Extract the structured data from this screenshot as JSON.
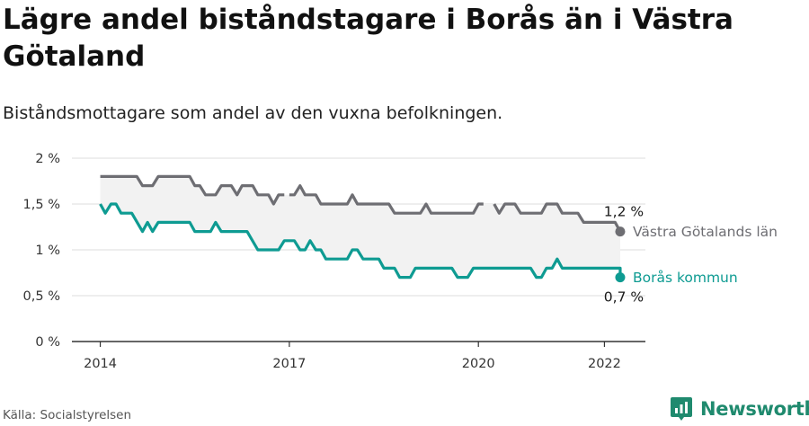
{
  "title": "Lägre andel biståndstagare i Borås än i Västra Götaland",
  "subtitle": "Biståndsmottagare som andel av den vuxna befolkningen.",
  "source": "Källa: Socialstyrelsen",
  "brand": {
    "name": "Newsworthy",
    "icon": "bar-chart-logo-icon",
    "color": "#1f8a6e"
  },
  "chart_data": {
    "type": "line",
    "x_axis": {
      "ticks": [
        "2014",
        "2017",
        "2020",
        "2022"
      ],
      "tick_values": [
        2014.0,
        2017.0,
        2020.0,
        2022.0
      ],
      "range": [
        2013.55,
        2022.65
      ]
    },
    "y_axis": {
      "ticks": [
        "0 %",
        "0,5 %",
        "1 %",
        "1,5 %",
        "2 %"
      ],
      "tick_values": [
        0,
        0.5,
        1.0,
        1.5,
        2.0
      ],
      "range": [
        0,
        2
      ],
      "grid": true
    },
    "shaded_band_between_series": true,
    "series": [
      {
        "name": "Västra Götalands län",
        "color": "#6e6e73",
        "end_label": "1,2 %",
        "points": [
          [
            2014.0,
            1.8
          ],
          [
            2014.58,
            1.8
          ],
          [
            2014.67,
            1.7
          ],
          [
            2014.83,
            1.7
          ],
          [
            2014.92,
            1.8
          ],
          [
            2015.42,
            1.8
          ],
          [
            2015.5,
            1.7
          ],
          [
            2015.58,
            1.7
          ],
          [
            2015.67,
            1.6
          ],
          [
            2015.83,
            1.6
          ],
          [
            2015.92,
            1.7
          ],
          [
            2016.08,
            1.7
          ],
          [
            2016.17,
            1.6
          ],
          [
            2016.25,
            1.7
          ],
          [
            2016.42,
            1.7
          ],
          [
            2016.5,
            1.6
          ],
          [
            2016.67,
            1.6
          ],
          [
            2016.75,
            1.5
          ],
          [
            2016.83,
            1.6
          ],
          [
            2016.92,
            1.6
          ],
          null,
          [
            2017.0,
            1.6
          ],
          [
            2017.08,
            1.6
          ],
          [
            2017.17,
            1.7
          ],
          [
            2017.25,
            1.6
          ],
          [
            2017.33,
            1.6
          ],
          [
            2017.42,
            1.6
          ],
          [
            2017.5,
            1.5
          ],
          [
            2017.92,
            1.5
          ],
          [
            2018.0,
            1.6
          ],
          [
            2018.08,
            1.5
          ],
          [
            2018.58,
            1.5
          ],
          [
            2018.67,
            1.4
          ],
          [
            2019.08,
            1.4
          ],
          [
            2019.17,
            1.5
          ],
          [
            2019.25,
            1.4
          ],
          [
            2019.92,
            1.4
          ],
          [
            2020.0,
            1.5
          ],
          [
            2020.08,
            1.5
          ],
          null,
          [
            2020.25,
            1.5
          ],
          [
            2020.33,
            1.4
          ],
          [
            2020.42,
            1.5
          ],
          [
            2020.58,
            1.5
          ],
          [
            2020.67,
            1.4
          ],
          [
            2021.0,
            1.4
          ],
          [
            2021.08,
            1.5
          ],
          [
            2021.25,
            1.5
          ],
          [
            2021.33,
            1.4
          ],
          [
            2021.58,
            1.4
          ],
          [
            2021.67,
            1.3
          ],
          [
            2022.17,
            1.3
          ],
          [
            2022.25,
            1.2
          ]
        ]
      },
      {
        "name": "Borås kommun",
        "color": "#0e9b92",
        "end_label": "0,7 %",
        "points": [
          [
            2014.0,
            1.5
          ],
          [
            2014.08,
            1.4
          ],
          [
            2014.17,
            1.5
          ],
          [
            2014.25,
            1.5
          ],
          [
            2014.33,
            1.4
          ],
          [
            2014.5,
            1.4
          ],
          [
            2014.67,
            1.2
          ],
          [
            2014.75,
            1.3
          ],
          [
            2014.83,
            1.2
          ],
          [
            2014.92,
            1.3
          ],
          [
            2015.42,
            1.3
          ],
          [
            2015.5,
            1.2
          ],
          [
            2015.75,
            1.2
          ],
          [
            2015.83,
            1.3
          ],
          [
            2015.92,
            1.2
          ],
          [
            2016.33,
            1.2
          ],
          [
            2016.5,
            1.0
          ],
          [
            2016.83,
            1.0
          ],
          [
            2016.92,
            1.1
          ],
          [
            2017.08,
            1.1
          ],
          [
            2017.17,
            1.0
          ],
          [
            2017.25,
            1.0
          ],
          [
            2017.33,
            1.1
          ],
          [
            2017.42,
            1.0
          ],
          [
            2017.5,
            1.0
          ],
          [
            2017.58,
            0.9
          ],
          [
            2017.92,
            0.9
          ],
          [
            2018.0,
            1.0
          ],
          [
            2018.08,
            1.0
          ],
          [
            2018.17,
            0.9
          ],
          [
            2018.42,
            0.9
          ],
          [
            2018.5,
            0.8
          ],
          [
            2018.67,
            0.8
          ],
          [
            2018.75,
            0.7
          ],
          [
            2018.92,
            0.7
          ],
          [
            2019.0,
            0.8
          ],
          [
            2019.58,
            0.8
          ],
          [
            2019.67,
            0.7
          ],
          [
            2019.83,
            0.7
          ],
          [
            2019.92,
            0.8
          ],
          [
            2020.83,
            0.8
          ],
          [
            2020.92,
            0.7
          ],
          [
            2021.0,
            0.7
          ],
          [
            2021.08,
            0.8
          ],
          [
            2021.17,
            0.8
          ],
          [
            2021.25,
            0.9
          ],
          [
            2021.33,
            0.8
          ],
          [
            2022.25,
            0.8
          ],
          [
            2022.25,
            0.7
          ]
        ]
      }
    ]
  }
}
